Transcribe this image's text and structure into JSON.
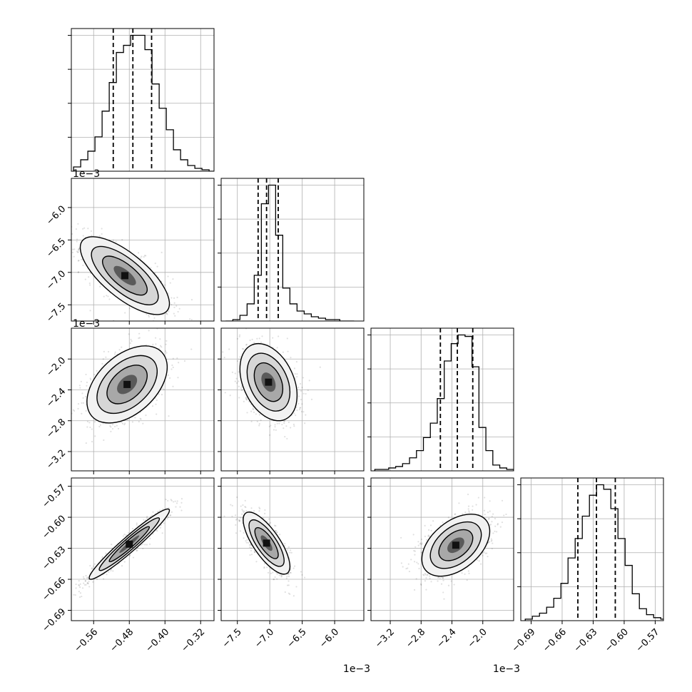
{
  "chart_data": {
    "type": "corner",
    "grid": true,
    "params": [
      {
        "ticks": [
          -0.56,
          -0.48,
          -0.4,
          -0.32
        ],
        "range": [
          -0.61,
          -0.29
        ],
        "tick_labels": [
          "−0.56",
          "−0.48",
          "−0.40",
          "−0.32"
        ],
        "offset": "",
        "hist_bins": [
          -0.605,
          -0.589,
          -0.573,
          -0.557,
          -0.541,
          -0.525,
          -0.509,
          -0.493,
          -0.477,
          -0.461,
          -0.445,
          -0.429,
          -0.413,
          -0.397,
          -0.381,
          -0.365,
          -0.349,
          -0.333,
          -0.317,
          -0.301
        ],
        "hist_counts": [
          3,
          8,
          14,
          24,
          42,
          62,
          83,
          88,
          95,
          95,
          85,
          61,
          44,
          29,
          15,
          8,
          4,
          2,
          1,
          0
        ],
        "quantiles": [
          -0.516,
          -0.472,
          -0.43
        ]
      },
      {
        "ticks": [
          -7.5,
          -7.0,
          -6.5,
          -6.0
        ],
        "range": [
          -7.75,
          -5.55
        ],
        "tick_labels": [
          "−7.5",
          "−7.0",
          "−6.5",
          "−6.0"
        ],
        "offset": "1e−3",
        "hist_bins": [
          -7.68,
          -7.57,
          -7.46,
          -7.35,
          -7.24,
          -7.13,
          -7.02,
          -6.91,
          -6.8,
          -6.69,
          -6.58,
          -6.47,
          -6.36,
          -6.25,
          -6.14,
          -6.03,
          -5.92,
          -5.81
        ],
        "hist_counts": [
          0,
          1,
          4,
          12,
          32,
          82,
          95,
          60,
          23,
          12,
          7,
          5,
          3,
          2,
          1,
          1,
          0,
          0
        ],
        "quantiles": [
          -7.18,
          -7.05,
          -6.87
        ]
      },
      {
        "ticks": [
          -3.2,
          -2.8,
          -2.4,
          -2.0
        ],
        "range": [
          -3.45,
          -1.6
        ],
        "tick_labels": [
          "−3.2",
          "−2.8",
          "−2.4",
          "−2.0"
        ],
        "offset": "1e−3",
        "hist_bins": [
          -3.4,
          -3.31,
          -3.22,
          -3.13,
          -3.04,
          -2.95,
          -2.86,
          -2.77,
          -2.68,
          -2.59,
          -2.5,
          -2.41,
          -2.32,
          -2.23,
          -2.14,
          -2.05,
          -1.96,
          -1.87,
          -1.78,
          -1.69
        ],
        "hist_counts": [
          1,
          1,
          2,
          3,
          5,
          9,
          14,
          23,
          33,
          50,
          76,
          88,
          94,
          93,
          72,
          30,
          14,
          4,
          2,
          1
        ],
        "quantiles": [
          -2.55,
          -2.33,
          -2.13
        ]
      },
      {
        "ticks": [
          -0.69,
          -0.66,
          -0.63,
          -0.6,
          -0.57
        ],
        "range": [
          -0.7,
          -0.562
        ],
        "tick_labels": [
          "−0.69",
          "−0.66",
          "−0.63",
          "−0.60",
          "−0.57"
        ],
        "offset": "",
        "hist_bins": [
          -0.6957,
          -0.6888,
          -0.6819,
          -0.675,
          -0.6681,
          -0.6612,
          -0.6543,
          -0.6474,
          -0.6405,
          -0.6336,
          -0.6267,
          -0.6198,
          -0.6129,
          -0.606,
          -0.5991,
          -0.5922,
          -0.5853,
          -0.5784,
          -0.5715,
          -0.5646
        ],
        "hist_counts": [
          1,
          3,
          5,
          9,
          15,
          25,
          42,
          55,
          70,
          84,
          91,
          88,
          75,
          55,
          37,
          18,
          8,
          4,
          2,
          1
        ],
        "quantiles": [
          -0.6448,
          -0.6268,
          -0.6086
        ]
      }
    ],
    "pairs": [
      {
        "row": 1,
        "col": 0,
        "center": [
          -0.49,
          -7.05
        ],
        "sd": [
          0.05,
          0.3
        ],
        "corr": -0.72
      },
      {
        "row": 2,
        "col": 0,
        "center": [
          -0.485,
          -2.33
        ],
        "sd": [
          0.045,
          0.25
        ],
        "corr": 0.45
      },
      {
        "row": 2,
        "col": 1,
        "center": [
          -7.02,
          -2.3
        ],
        "sd": [
          0.22,
          0.25
        ],
        "corr": -0.35
      },
      {
        "row": 3,
        "col": 0,
        "center": [
          -0.48,
          -0.626
        ],
        "sd": [
          0.045,
          0.017
        ],
        "corr": 0.96
      },
      {
        "row": 3,
        "col": 1,
        "center": [
          -7.05,
          -0.625
        ],
        "sd": [
          0.18,
          0.015
        ],
        "corr": -0.75
      },
      {
        "row": 3,
        "col": 2,
        "center": [
          -2.35,
          -0.627
        ],
        "sd": [
          0.22,
          0.015
        ],
        "corr": 0.45
      }
    ]
  }
}
